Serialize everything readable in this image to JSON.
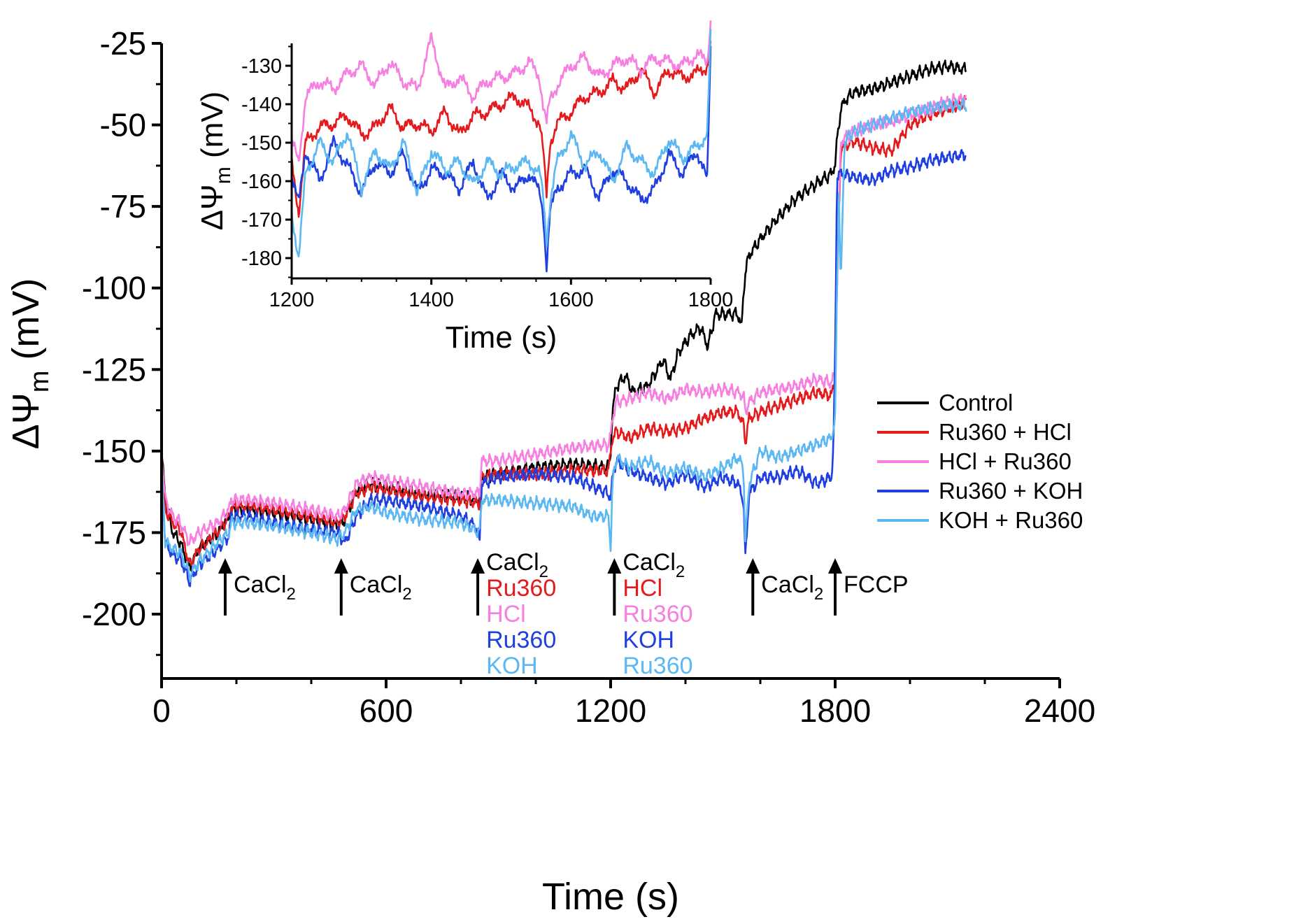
{
  "chart_data": [
    {
      "id": "main",
      "type": "line",
      "title": "",
      "xlabel": "Time (s)",
      "ylabel_main": "ΔΨ",
      "ylabel_sub": "m",
      "ylabel_unit": " (mV)",
      "xlim": [
        0,
        2400
      ],
      "ylim": [
        -225,
        -15
      ],
      "xticks": [
        0,
        600,
        1200,
        1800,
        2400
      ],
      "yticks": [
        -25,
        -50,
        -75,
        -100,
        -125,
        -150,
        -175,
        -200
      ],
      "grid": false,
      "legend_position": "right",
      "series": [
        {
          "name": "Control",
          "color": "#000000",
          "x": [
            0,
            10,
            30,
            50,
            75,
            100,
            150,
            180,
            186,
            230,
            300,
            400,
            470,
            490,
            520,
            560,
            600,
            700,
            800,
            850,
            855,
            900,
            1000,
            1100,
            1195,
            1200,
            1205,
            1215,
            1240,
            1260,
            1300,
            1320,
            1340,
            1360,
            1380,
            1410,
            1440,
            1460,
            1480,
            1500,
            1520,
            1540,
            1550,
            1555,
            1560,
            1570,
            1600,
            1650,
            1700,
            1750,
            1790,
            1800,
            1805,
            1815,
            1830,
            1850,
            1900,
            1950,
            2000,
            2050,
            2100,
            2150
          ],
          "y": [
            -150,
            -165,
            -175,
            -178,
            -186,
            -180,
            -175,
            -170,
            -168,
            -168,
            -169,
            -171,
            -173,
            -171,
            -162,
            -160,
            -161,
            -163,
            -164,
            -165,
            -158,
            -157,
            -155,
            -154,
            -155,
            -150,
            -138,
            -130,
            -127,
            -132,
            -130,
            -126,
            -122,
            -128,
            -120,
            -115,
            -112,
            -118,
            -108,
            -108,
            -108,
            -108,
            -112,
            -102,
            -95,
            -90,
            -85,
            -78,
            -72,
            -68,
            -65,
            -62,
            -55,
            -45,
            -42,
            -40,
            -39,
            -37,
            -35,
            -33,
            -32,
            -33
          ]
        },
        {
          "name": "Ru360 + HCl",
          "color": "#e41a1c",
          "x": [
            0,
            10,
            30,
            50,
            75,
            100,
            150,
            180,
            186,
            230,
            300,
            400,
            470,
            490,
            520,
            560,
            600,
            700,
            800,
            850,
            855,
            900,
            1000,
            1100,
            1195,
            1200,
            1205,
            1215,
            1250,
            1300,
            1350,
            1400,
            1450,
            1500,
            1540,
            1555,
            1560,
            1570,
            1600,
            1650,
            1700,
            1750,
            1790,
            1800,
            1805,
            1815,
            1850,
            1900,
            1950,
            2000,
            2050,
            2100,
            2150
          ],
          "y": [
            -150,
            -168,
            -172,
            -174,
            -185,
            -180,
            -175,
            -170,
            -167,
            -167,
            -168,
            -170,
            -172,
            -170,
            -163,
            -161,
            -162,
            -164,
            -165,
            -166,
            -158,
            -157,
            -157,
            -156,
            -156,
            -150,
            -146,
            -144,
            -146,
            -143,
            -144,
            -143,
            -140,
            -138,
            -138,
            -142,
            -147,
            -140,
            -138,
            -136,
            -134,
            -132,
            -133,
            -128,
            -100,
            -57,
            -55,
            -57,
            -58,
            -50,
            -47,
            -45,
            -43
          ]
        },
        {
          "name": "HCl + Ru360",
          "color": "#f77fe0",
          "x": [
            0,
            10,
            30,
            50,
            75,
            100,
            150,
            180,
            186,
            230,
            300,
            400,
            470,
            490,
            520,
            560,
            600,
            700,
            800,
            850,
            855,
            900,
            1000,
            1100,
            1195,
            1200,
            1205,
            1215,
            1250,
            1300,
            1350,
            1400,
            1450,
            1500,
            1540,
            1555,
            1560,
            1570,
            1600,
            1650,
            1700,
            1750,
            1790,
            1800,
            1805,
            1815,
            1850,
            1900,
            1950,
            2000,
            2050,
            2100,
            2150
          ],
          "y": [
            -150,
            -165,
            -170,
            -172,
            -178,
            -175,
            -172,
            -168,
            -165,
            -165,
            -166,
            -168,
            -170,
            -168,
            -160,
            -158,
            -159,
            -161,
            -163,
            -163,
            -153,
            -153,
            -151,
            -149,
            -148,
            -145,
            -140,
            -135,
            -134,
            -132,
            -134,
            -131,
            -132,
            -131,
            -132,
            -133,
            -138,
            -135,
            -132,
            -131,
            -130,
            -128,
            -129,
            -126,
            -100,
            -55,
            -52,
            -50,
            -49,
            -47,
            -45,
            -43,
            -42
          ]
        },
        {
          "name": "Ru360 + KOH",
          "color": "#1f3fe0",
          "x": [
            0,
            10,
            30,
            50,
            75,
            100,
            150,
            180,
            186,
            230,
            300,
            400,
            470,
            490,
            520,
            560,
            600,
            700,
            800,
            840,
            850,
            855,
            900,
            1000,
            1100,
            1195,
            1200,
            1205,
            1215,
            1250,
            1300,
            1350,
            1400,
            1450,
            1500,
            1540,
            1555,
            1560,
            1570,
            1600,
            1650,
            1700,
            1750,
            1790,
            1795,
            1800,
            1805,
            1815,
            1850,
            1900,
            1950,
            2000,
            2050,
            2100,
            2150
          ],
          "y": [
            -155,
            -178,
            -182,
            -183,
            -190,
            -185,
            -180,
            -176,
            -170,
            -170,
            -172,
            -174,
            -175,
            -178,
            -170,
            -165,
            -165,
            -167,
            -170,
            -173,
            -178,
            -160,
            -158,
            -157,
            -158,
            -163,
            -165,
            -158,
            -153,
            -156,
            -158,
            -160,
            -157,
            -161,
            -158,
            -160,
            -165,
            -183,
            -163,
            -158,
            -158,
            -156,
            -160,
            -158,
            -150,
            -120,
            -65,
            -65,
            -66,
            -67,
            -64,
            -63,
            -61,
            -60,
            -59
          ]
        },
        {
          "name": "KOH + Ru360",
          "color": "#5bb8f2",
          "x": [
            0,
            10,
            30,
            50,
            75,
            100,
            150,
            180,
            186,
            230,
            300,
            400,
            470,
            490,
            520,
            560,
            600,
            700,
            800,
            850,
            855,
            900,
            1000,
            1100,
            1150,
            1195,
            1200,
            1205,
            1215,
            1250,
            1300,
            1350,
            1400,
            1450,
            1500,
            1540,
            1555,
            1560,
            1570,
            1600,
            1650,
            1700,
            1750,
            1790,
            1800,
            1805,
            1810,
            1815,
            1825,
            1850,
            1900,
            1950,
            2000,
            2050,
            2100,
            2150
          ],
          "y": [
            -155,
            -178,
            -180,
            -181,
            -188,
            -184,
            -178,
            -175,
            -172,
            -172,
            -173,
            -175,
            -177,
            -175,
            -168,
            -167,
            -169,
            -171,
            -172,
            -175,
            -165,
            -165,
            -166,
            -167,
            -170,
            -170,
            -180,
            -160,
            -152,
            -155,
            -153,
            -157,
            -155,
            -158,
            -155,
            -152,
            -155,
            -178,
            -160,
            -150,
            -152,
            -150,
            -148,
            -146,
            -140,
            -100,
            -70,
            -100,
            -55,
            -52,
            -50,
            -48,
            -46,
            -45,
            -44,
            -44
          ]
        }
      ],
      "annotations": [
        {
          "name": "cacl2-1",
          "x": 170,
          "lines": [
            {
              "text": "CaCl",
              "sub": "2",
              "color": "#000000"
            }
          ]
        },
        {
          "name": "cacl2-2",
          "x": 480,
          "lines": [
            {
              "text": "CaCl",
              "sub": "2",
              "color": "#000000"
            }
          ]
        },
        {
          "name": "cacl2-3",
          "x": 845,
          "lines": [
            {
              "text": "CaCl",
              "sub": "2",
              "color": "#000000"
            },
            {
              "text": "Ru360",
              "color": "#e41a1c"
            },
            {
              "text": "HCl",
              "color": "#f77fe0"
            },
            {
              "text": "Ru360",
              "color": "#1f3fe0"
            },
            {
              "text": "KOH",
              "color": "#5bb8f2"
            }
          ]
        },
        {
          "name": "cacl2-4",
          "x": 1210,
          "lines": [
            {
              "text": "CaCl",
              "sub": "2",
              "color": "#000000"
            },
            {
              "text": "HCl",
              "color": "#e41a1c"
            },
            {
              "text": "Ru360",
              "color": "#f77fe0"
            },
            {
              "text": "KOH",
              "color": "#1f3fe0"
            },
            {
              "text": "Ru360",
              "color": "#5bb8f2"
            }
          ]
        },
        {
          "name": "cacl2-5",
          "x": 1580,
          "lines": [
            {
              "text": "CaCl",
              "sub": "2",
              "color": "#000000"
            }
          ]
        },
        {
          "name": "fccp",
          "x": 1800,
          "lines": [
            {
              "text": "FCCP",
              "color": "#000000"
            }
          ]
        }
      ]
    },
    {
      "id": "inset",
      "type": "line",
      "title": "",
      "xlabel": "Time (s)",
      "ylabel_main": "ΔΨ",
      "ylabel_sub": "m",
      "ylabel_unit": " (mV)",
      "xlim": [
        1200,
        1800
      ],
      "ylim": [
        -185,
        -120
      ],
      "xticks": [
        1200,
        1400,
        1600,
        1800
      ],
      "yticks": [
        -130,
        -140,
        -150,
        -160,
        -170,
        -180
      ],
      "grid": false,
      "series": [
        {
          "name": "Control",
          "color": "#000000",
          "x": [],
          "y": []
        },
        {
          "name": "Ru360 + HCl",
          "color": "#e41a1c",
          "x": [
            1200,
            1210,
            1220,
            1240,
            1260,
            1280,
            1300,
            1320,
            1340,
            1360,
            1380,
            1400,
            1420,
            1440,
            1460,
            1480,
            1500,
            1520,
            1540,
            1555,
            1560,
            1565,
            1570,
            1580,
            1600,
            1620,
            1640,
            1660,
            1680,
            1700,
            1720,
            1740,
            1760,
            1780,
            1795,
            1800
          ],
          "y": [
            -155,
            -168,
            -150,
            -146,
            -145,
            -143,
            -148,
            -146,
            -141,
            -146,
            -145,
            -147,
            -142,
            -148,
            -143,
            -142,
            -140,
            -138,
            -141,
            -145,
            -152,
            -164,
            -150,
            -145,
            -142,
            -138,
            -137,
            -134,
            -136,
            -131,
            -137,
            -131,
            -133,
            -132,
            -130,
            -125
          ]
        },
        {
          "name": "HCl + Ru360",
          "color": "#f77fe0",
          "x": [
            1200,
            1210,
            1220,
            1240,
            1260,
            1280,
            1300,
            1320,
            1340,
            1360,
            1380,
            1400,
            1420,
            1440,
            1460,
            1480,
            1500,
            1520,
            1540,
            1555,
            1560,
            1565,
            1570,
            1580,
            1600,
            1620,
            1640,
            1660,
            1680,
            1700,
            1720,
            1740,
            1760,
            1780,
            1795,
            1800
          ],
          "y": [
            -150,
            -155,
            -138,
            -134,
            -136,
            -132,
            -130,
            -135,
            -129,
            -134,
            -136,
            -123,
            -136,
            -133,
            -138,
            -134,
            -133,
            -132,
            -129,
            -133,
            -140,
            -145,
            -139,
            -135,
            -130,
            -128,
            -133,
            -130,
            -128,
            -131,
            -128,
            -129,
            -130,
            -127,
            -129,
            -118
          ]
        },
        {
          "name": "Ru360 + KOH",
          "color": "#1f3fe0",
          "x": [
            1200,
            1210,
            1220,
            1240,
            1260,
            1280,
            1300,
            1320,
            1340,
            1360,
            1380,
            1400,
            1420,
            1440,
            1460,
            1480,
            1500,
            1520,
            1540,
            1555,
            1560,
            1565,
            1570,
            1580,
            1600,
            1620,
            1640,
            1660,
            1680,
            1700,
            1720,
            1740,
            1760,
            1780,
            1795,
            1800
          ],
          "y": [
            -158,
            -166,
            -152,
            -160,
            -150,
            -156,
            -163,
            -155,
            -158,
            -153,
            -163,
            -157,
            -158,
            -162,
            -155,
            -165,
            -158,
            -162,
            -158,
            -163,
            -168,
            -182,
            -168,
            -162,
            -158,
            -157,
            -164,
            -157,
            -160,
            -165,
            -162,
            -153,
            -158,
            -152,
            -160,
            -125
          ]
        },
        {
          "name": "KOH + Ru360",
          "color": "#5bb8f2",
          "x": [
            1200,
            1210,
            1220,
            1240,
            1260,
            1280,
            1300,
            1320,
            1340,
            1360,
            1380,
            1400,
            1420,
            1440,
            1460,
            1480,
            1500,
            1520,
            1540,
            1555,
            1560,
            1565,
            1570,
            1580,
            1600,
            1620,
            1640,
            1660,
            1680,
            1700,
            1720,
            1740,
            1760,
            1780,
            1795,
            1800
          ],
          "y": [
            -168,
            -180,
            -158,
            -150,
            -155,
            -147,
            -162,
            -152,
            -157,
            -150,
            -163,
            -152,
            -157,
            -155,
            -161,
            -155,
            -158,
            -156,
            -155,
            -158,
            -164,
            -176,
            -165,
            -155,
            -148,
            -156,
            -152,
            -160,
            -151,
            -155,
            -158,
            -149,
            -154,
            -151,
            -148,
            -122
          ]
        }
      ]
    }
  ]
}
